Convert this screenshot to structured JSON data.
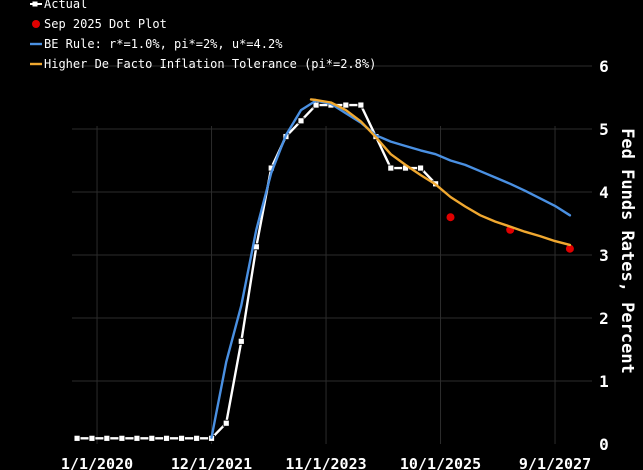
{
  "chart_data": {
    "type": "line",
    "title": "",
    "xlabel": "",
    "ylabel": "Fed Funds Rates, Percent",
    "ylim": [
      0,
      6
    ],
    "yticks": [
      "0",
      "1",
      "2",
      "3",
      "4",
      "5",
      "6"
    ],
    "xrange": [
      "2019-08-01",
      "2027-11-01"
    ],
    "xticks": [
      {
        "label": "1/1/2020",
        "date": "2020-01-01"
      },
      {
        "label": "12/1/2021",
        "date": "2021-12-01"
      },
      {
        "label": "11/1/2023",
        "date": "2023-11-01"
      },
      {
        "label": "10/1/2025",
        "date": "2025-10-01"
      },
      {
        "label": "9/1/2027",
        "date": "2027-09-01"
      }
    ],
    "grid": true,
    "legend_position": "top-left",
    "series": [
      {
        "name": "Actual",
        "kind": "line-marker",
        "color": "#ffffff",
        "marker": "square",
        "points": [
          [
            "2019-09-01",
            0.09
          ],
          [
            "2019-12-01",
            0.09
          ],
          [
            "2020-03-01",
            0.09
          ],
          [
            "2020-06-01",
            0.09
          ],
          [
            "2020-09-01",
            0.09
          ],
          [
            "2020-12-01",
            0.09
          ],
          [
            "2021-03-01",
            0.09
          ],
          [
            "2021-06-01",
            0.09
          ],
          [
            "2021-09-01",
            0.09
          ],
          [
            "2021-12-01",
            0.09
          ],
          [
            "2022-03-01",
            0.33
          ],
          [
            "2022-06-01",
            1.63
          ],
          [
            "2022-09-01",
            3.13
          ],
          [
            "2022-12-01",
            4.38
          ],
          [
            "2023-03-01",
            4.88
          ],
          [
            "2023-06-01",
            5.13
          ],
          [
            "2023-09-01",
            5.38
          ],
          [
            "2023-12-01",
            5.38
          ],
          [
            "2024-03-01",
            5.38
          ],
          [
            "2024-06-01",
            5.38
          ],
          [
            "2024-09-01",
            4.88
          ],
          [
            "2024-12-01",
            4.38
          ],
          [
            "2025-03-01",
            4.38
          ],
          [
            "2025-06-01",
            4.38
          ],
          [
            "2025-09-01",
            4.13
          ]
        ]
      },
      {
        "name": "Sep 2025 Dot Plot",
        "kind": "scatter",
        "color": "#e00000",
        "marker": "circle",
        "points": [
          [
            "2025-12-01",
            3.6
          ],
          [
            "2026-12-01",
            3.4
          ],
          [
            "2027-12-01",
            3.1
          ]
        ]
      },
      {
        "name": "BE Rule: r*=1.0%, pi*=2%, u*=4.2%",
        "kind": "line",
        "color": "#4a90e2",
        "points": [
          [
            "2021-12-01",
            0.1
          ],
          [
            "2022-03-01",
            1.3
          ],
          [
            "2022-06-01",
            2.2
          ],
          [
            "2022-09-01",
            3.4
          ],
          [
            "2022-12-01",
            4.3
          ],
          [
            "2023-03-01",
            4.9
          ],
          [
            "2023-06-01",
            5.3
          ],
          [
            "2023-09-01",
            5.45
          ],
          [
            "2023-12-01",
            5.4
          ],
          [
            "2024-03-01",
            5.25
          ],
          [
            "2024-06-01",
            5.1
          ],
          [
            "2024-09-01",
            4.9
          ],
          [
            "2024-12-01",
            4.8
          ],
          [
            "2025-03-01",
            4.73
          ],
          [
            "2025-06-01",
            4.66
          ],
          [
            "2025-09-01",
            4.6
          ],
          [
            "2025-12-01",
            4.5
          ],
          [
            "2026-03-01",
            4.43
          ],
          [
            "2026-06-01",
            4.33
          ],
          [
            "2026-09-01",
            4.23
          ],
          [
            "2026-12-01",
            4.13
          ],
          [
            "2027-03-01",
            4.02
          ],
          [
            "2027-06-01",
            3.9
          ],
          [
            "2027-09-01",
            3.78
          ],
          [
            "2027-12-01",
            3.63
          ]
        ]
      },
      {
        "name": "Higher De Facto Inflation Tolerance (pi*=2.8%)",
        "kind": "line",
        "color": "#f0a830",
        "points": [
          [
            "2023-08-01",
            5.47
          ],
          [
            "2023-09-01",
            5.46
          ],
          [
            "2023-12-01",
            5.42
          ],
          [
            "2024-03-01",
            5.3
          ],
          [
            "2024-06-01",
            5.12
          ],
          [
            "2024-09-01",
            4.87
          ],
          [
            "2024-12-01",
            4.6
          ],
          [
            "2025-03-01",
            4.43
          ],
          [
            "2025-06-01",
            4.27
          ],
          [
            "2025-09-01",
            4.12
          ],
          [
            "2025-12-01",
            3.92
          ],
          [
            "2026-03-01",
            3.77
          ],
          [
            "2026-06-01",
            3.63
          ],
          [
            "2026-09-01",
            3.53
          ],
          [
            "2026-12-01",
            3.45
          ],
          [
            "2027-03-01",
            3.37
          ],
          [
            "2027-06-01",
            3.3
          ],
          [
            "2027-09-01",
            3.22
          ],
          [
            "2027-12-01",
            3.16
          ]
        ]
      }
    ]
  }
}
